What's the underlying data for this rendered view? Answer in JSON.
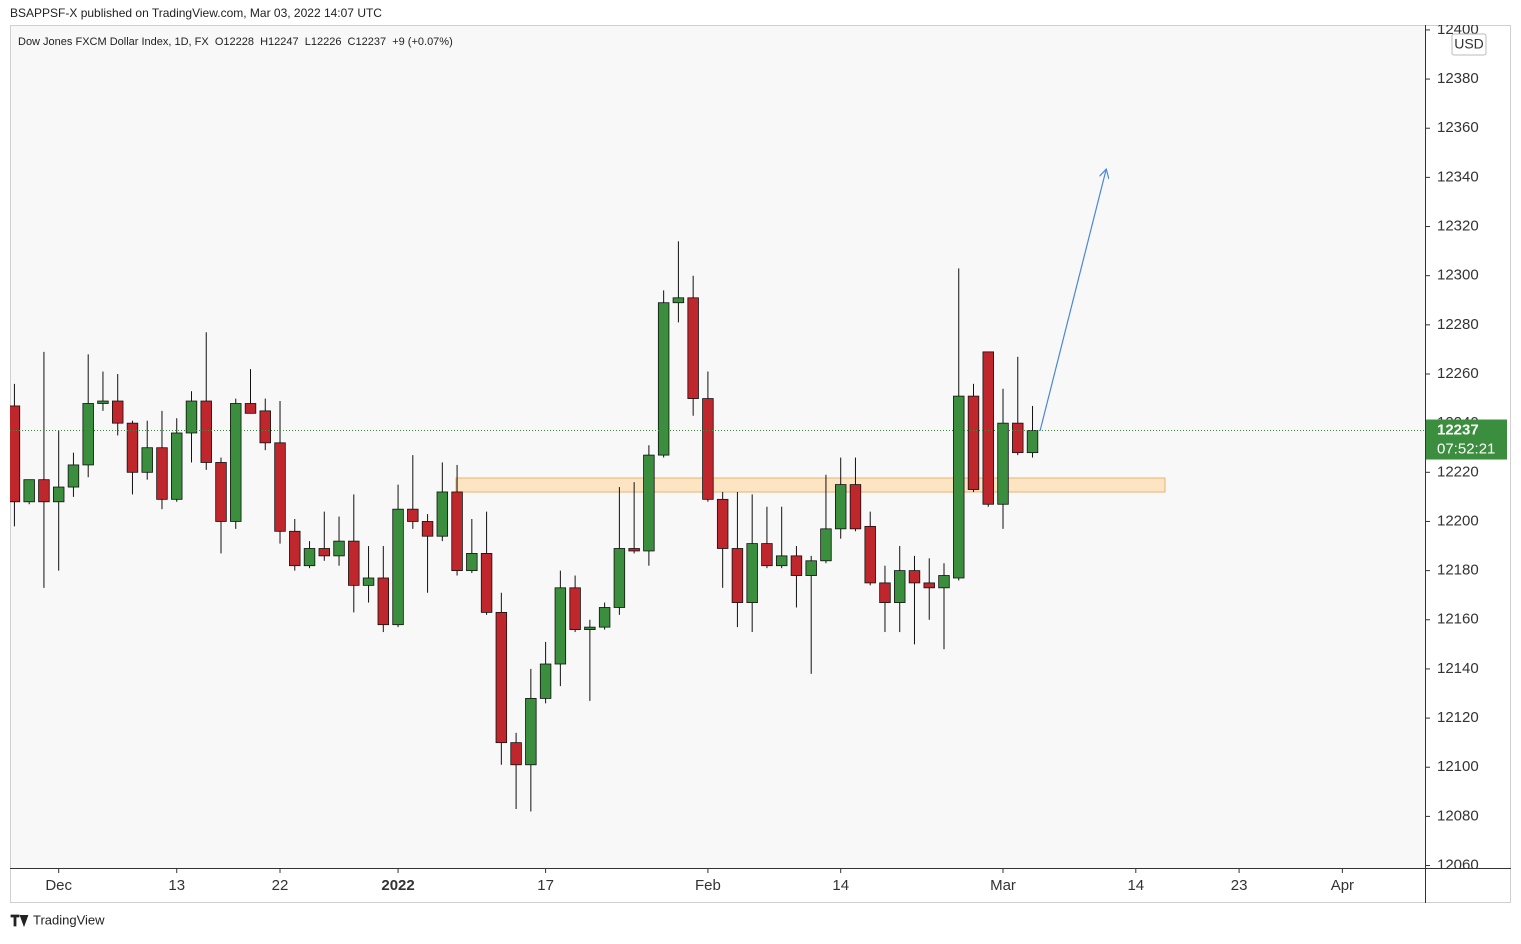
{
  "chart_data": {
    "type": "candlestick",
    "publisher": "BSAPPSF-X published on TradingView.com, Mar 03, 2022 14:07 UTC",
    "legend": "Dow Jones FXCM Dollar Index, 1D, FX  O12228  H12247  L12226  C12237  +9 (+0.07%)",
    "currency": "USD",
    "brand": "TradingView",
    "up_color": "#3a8e3d",
    "down_color": "#c0272d",
    "last_price": 12237,
    "countdown": "07:52:21",
    "open": [
      12247,
      12208,
      12217,
      12208,
      12214,
      12223,
      12248,
      12249,
      12240,
      12220,
      12230,
      12209,
      12236,
      12249,
      12224,
      12200,
      12248,
      12245,
      12232,
      12196,
      12182,
      12189,
      12186,
      12192,
      12174,
      12177,
      12158,
      12205,
      12200,
      12194,
      12212,
      12180,
      12187,
      12163,
      12110,
      12101,
      12128,
      12142,
      12173,
      12156,
      12157,
      12165,
      12189,
      12188,
      12227,
      12289,
      12291,
      12250,
      12209,
      12189,
      12167,
      12191,
      12182,
      12186,
      12178,
      12184,
      12197,
      12215,
      12198,
      12175,
      12167,
      12180,
      12175,
      12173,
      12177,
      12251,
      12269,
      12207,
      12240,
      12228
    ],
    "high": [
      12256,
      12217,
      12269,
      12237,
      12228,
      12268,
      12261,
      12260,
      12241,
      12241,
      12245,
      12242,
      12253,
      12277,
      12226,
      12250,
      12262,
      12250,
      12249,
      12201,
      12192,
      12204,
      12202,
      12211,
      12190,
      12190,
      12215,
      12227,
      12203,
      12224,
      12223,
      12201,
      12204,
      12171,
      12114,
      12140,
      12151,
      12180,
      12178,
      12160,
      12167,
      12214,
      12216,
      12231,
      12294,
      12314,
      12300,
      12261,
      12212,
      12212,
      12211,
      12206,
      12206,
      12190,
      12186,
      12219,
      12226,
      12226,
      12204,
      12182,
      12190,
      12186,
      12185,
      12183,
      12303,
      12256,
      12269,
      12254,
      12267,
      12247
    ],
    "low": [
      12198,
      12207,
      12173,
      12180,
      12210,
      12218,
      12245,
      12235,
      12211,
      12217,
      12205,
      12208,
      12224,
      12221,
      12187,
      12197,
      12244,
      12229,
      12191,
      12180,
      12181,
      12184,
      12182,
      12163,
      12167,
      12155,
      12157,
      12197,
      12171,
      12192,
      12178,
      12179,
      12162,
      12101,
      12083,
      12082,
      12126,
      12133,
      12155,
      12127,
      12156,
      12162,
      12187,
      12182,
      12226,
      12281,
      12243,
      12208,
      12173,
      12157,
      12155,
      12181,
      12181,
      12165,
      12138,
      12183,
      12193,
      12196,
      12174,
      12155,
      12155,
      12150,
      12160,
      12148,
      12176,
      12212,
      12206,
      12197,
      12227,
      12226
    ],
    "close": [
      12208,
      12217,
      12208,
      12214,
      12223,
      12248,
      12249,
      12240,
      12220,
      12230,
      12209,
      12236,
      12249,
      12224,
      12200,
      12248,
      12244,
      12232,
      12196,
      12182,
      12189,
      12186,
      12192,
      12174,
      12177,
      12158,
      12205,
      12200,
      12194,
      12212,
      12180,
      12187,
      12163,
      12110,
      12101,
      12128,
      12142,
      12173,
      12156,
      12157,
      12165,
      12189,
      12188,
      12227,
      12289,
      12291,
      12250,
      12209,
      12189,
      12167,
      12191,
      12182,
      12186,
      12178,
      12184,
      12197,
      12215,
      12197,
      12175,
      12167,
      12180,
      12175,
      12173,
      12178,
      12251,
      12213,
      12207,
      12240,
      12228,
      12237
    ],
    "xlim": [
      -0.3,
      95.6
    ],
    "xticks": [
      {
        "value": 3,
        "label": "Dec"
      },
      {
        "value": 11,
        "label": "13"
      },
      {
        "value": 18,
        "label": "22"
      },
      {
        "value": 26,
        "label": "2022"
      },
      {
        "value": 36,
        "label": "17"
      },
      {
        "value": 47,
        "label": "Feb"
      },
      {
        "value": 56,
        "label": "14"
      },
      {
        "value": 67,
        "label": "Mar"
      },
      {
        "value": 76,
        "label": "14"
      },
      {
        "value": 83,
        "label": "23"
      },
      {
        "value": 90,
        "label": "Apr"
      }
    ],
    "ylim": [
      12059,
      12402
    ],
    "yticks": [
      12060,
      12080,
      12100,
      12120,
      12140,
      12160,
      12180,
      12200,
      12220,
      12240,
      12260,
      12280,
      12300,
      12320,
      12340,
      12360,
      12380,
      12400
    ]
  }
}
